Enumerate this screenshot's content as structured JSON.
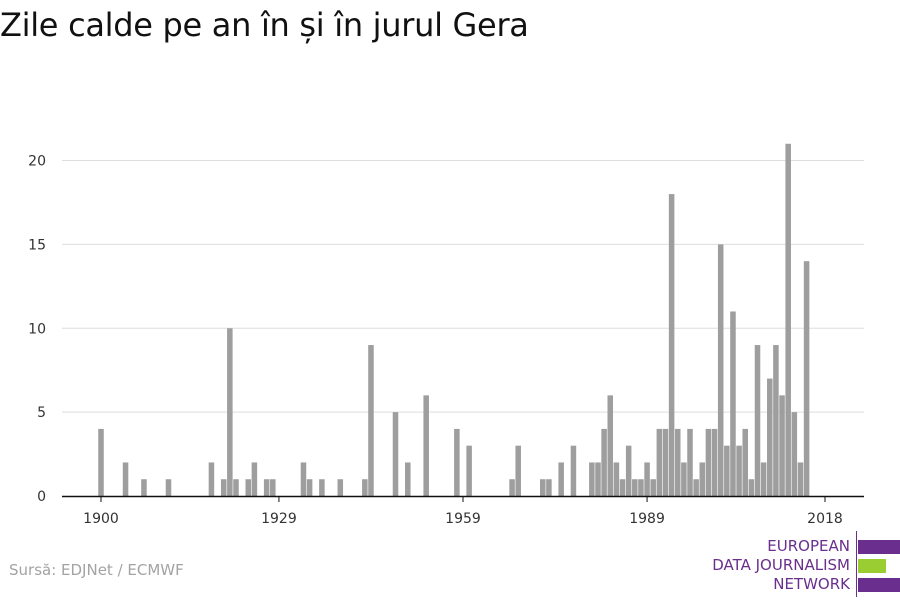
{
  "title": "Zile calde pe an în și în jurul Gera",
  "source": "Sursă: EDJNet / ECMWF",
  "logo": {
    "lines": [
      "EUROPEAN",
      "DATA JOURNALISM",
      "NETWORK"
    ],
    "colors": {
      "purple": "#6a2f8e",
      "green": "#9acd32"
    }
  },
  "chart_data": {
    "type": "bar",
    "title": "Zile calde pe an în și în jurul Gera",
    "xlabel": "",
    "ylabel": "",
    "xlim": [
      1894,
      2024
    ],
    "ylim": [
      0,
      22
    ],
    "y_ticks": [
      0,
      5,
      10,
      15,
      20
    ],
    "x_ticks": [
      1900,
      1929,
      1959,
      1989,
      2018
    ],
    "grid": true,
    "bar_color": "#9e9e9e",
    "x": [
      1900,
      1904,
      1907,
      1911,
      1918,
      1920,
      1921,
      1922,
      1924,
      1925,
      1927,
      1928,
      1933,
      1934,
      1936,
      1939,
      1943,
      1944,
      1948,
      1950,
      1953,
      1958,
      1960,
      1967,
      1968,
      1972,
      1973,
      1975,
      1977,
      1980,
      1981,
      1982,
      1983,
      1984,
      1985,
      1986,
      1987,
      1988,
      1989,
      1990,
      1991,
      1992,
      1993,
      1994,
      1995,
      1996,
      1997,
      1998,
      1999,
      2000,
      2001,
      2002,
      2003,
      2004,
      2005,
      2006,
      2007,
      2008,
      2009,
      2010,
      2011,
      2012,
      2013,
      2014,
      2015,
      2016,
      2017,
      2018
    ],
    "values": [
      4,
      2,
      1,
      1,
      2,
      1,
      10,
      1,
      1,
      2,
      1,
      1,
      2,
      1,
      1,
      1,
      1,
      9,
      5,
      2,
      6,
      4,
      3,
      1,
      3,
      1,
      1,
      2,
      3,
      2,
      2,
      4,
      6,
      2,
      1,
      3,
      1,
      1,
      2,
      1,
      4,
      4,
      18,
      4,
      2,
      4,
      1,
      2,
      4,
      4,
      15,
      3,
      11,
      3,
      4,
      1,
      9,
      2,
      7,
      9,
      6,
      21,
      5,
      2,
      14,
      0,
      0,
      0
    ]
  }
}
